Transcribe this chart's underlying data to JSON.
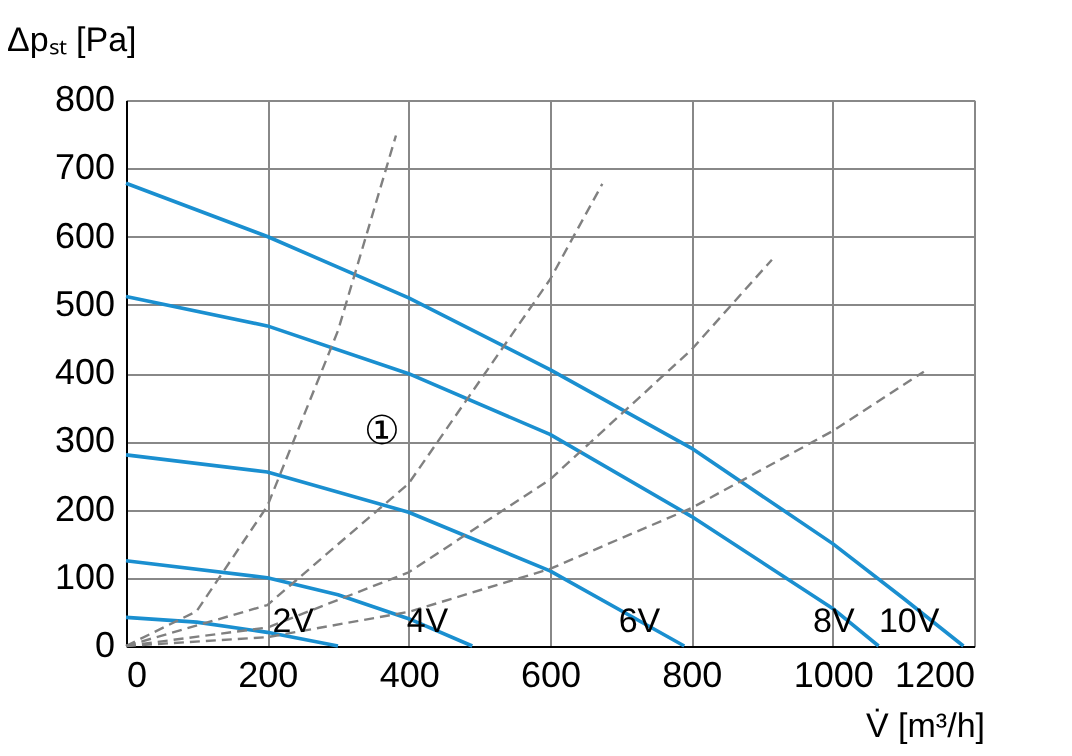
{
  "chart_data": {
    "type": "line",
    "xlabel": "V̇ [m³/h]",
    "ylabel": "Δpₛₜ [Pa]",
    "xlim": [
      0,
      1200
    ],
    "ylim": [
      0,
      800
    ],
    "xticks": [
      0,
      200,
      400,
      600,
      800,
      1000,
      1200
    ],
    "yticks": [
      0,
      100,
      200,
      300,
      400,
      500,
      600,
      700,
      800
    ],
    "grid": true,
    "marker": "none",
    "series": [
      {
        "name": "10V",
        "color": "#1a8fd0",
        "line_style": "solid",
        "x": [
          0,
          200,
          400,
          600,
          800,
          1000,
          1100,
          1185
        ],
        "values": [
          678,
          600,
          510,
          405,
          290,
          150,
          70,
          0
        ]
      },
      {
        "name": "8V",
        "color": "#1a8fd0",
        "line_style": "solid",
        "x": [
          0,
          200,
          400,
          600,
          800,
          1000,
          1065
        ],
        "values": [
          512,
          469,
          399,
          310,
          190,
          55,
          0
        ]
      },
      {
        "name": "6V",
        "color": "#1a8fd0",
        "line_style": "solid",
        "x": [
          0,
          200,
          400,
          600,
          790
        ],
        "values": [
          280,
          255,
          196,
          110,
          0
        ]
      },
      {
        "name": "4V",
        "color": "#1a8fd0",
        "line_style": "solid",
        "x": [
          0,
          200,
          300,
          400,
          490
        ],
        "values": [
          125,
          100,
          75,
          40,
          0
        ]
      },
      {
        "name": "2V",
        "color": "#1a8fd0",
        "line_style": "solid",
        "x": [
          0,
          100,
          200,
          300
        ],
        "values": [
          42,
          35,
          20,
          0
        ]
      },
      {
        "color": "#808080",
        "line_style": "dashed",
        "x": [
          0,
          100,
          200,
          300,
          382
        ],
        "values": [
          0,
          51,
          205,
          462,
          748
        ]
      },
      {
        "color": "#808080",
        "line_style": "dashed",
        "x": [
          0,
          200,
          400,
          600,
          674
        ],
        "values": [
          0,
          60,
          238,
          537,
          677
        ]
      },
      {
        "color": "#808080",
        "line_style": "dashed",
        "x": [
          0,
          200,
          400,
          600,
          800,
          914
        ],
        "values": [
          0,
          27,
          108,
          244,
          434,
          566
        ]
      },
      {
        "color": "#808080",
        "line_style": "dashed",
        "x": [
          0,
          200,
          400,
          600,
          800,
          1000,
          1129
        ],
        "values": [
          0,
          13,
          50,
          113,
          202,
          315,
          402
        ]
      }
    ],
    "annotations": [
      "①"
    ]
  }
}
